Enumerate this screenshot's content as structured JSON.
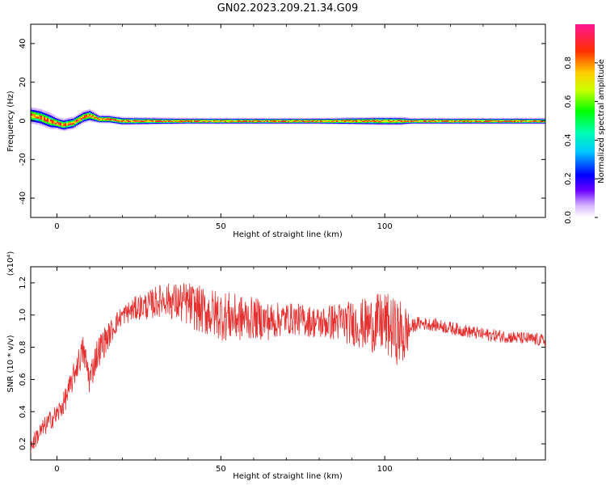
{
  "title": "GN02.2023.209.21.34.G09",
  "chart_data": [
    {
      "type": "heatmap",
      "xlabel": "Height of straight line (km)",
      "ylabel": "Frequency (Hz)",
      "xlim": [
        -8,
        149
      ],
      "ylim": [
        -50,
        50
      ],
      "xticks": [
        0,
        50,
        100
      ],
      "yticks": [
        -40,
        -20,
        0,
        20,
        40
      ],
      "yticklabels": [
        "-40",
        "-20",
        "0",
        "20",
        "40"
      ],
      "colorbar": {
        "label": "Normalized spectral amplitude",
        "range": [
          0,
          1
        ],
        "ticks": [
          0.0,
          0.2,
          0.4,
          0.6,
          0.8
        ],
        "ticklabels": [
          "0.0",
          "0.2",
          "0.4",
          "0.6",
          "0.8"
        ],
        "colormap": [
          "#ffffff",
          "#6a00ff",
          "#0000ff",
          "#00ffff",
          "#00ff00",
          "#ffff00",
          "#ff0000",
          "#ff1493"
        ]
      },
      "ridge": {
        "x": [
          -8,
          -5,
          -2,
          0,
          2,
          5,
          8,
          10,
          13,
          16,
          20,
          40,
          60,
          80,
          98,
          105,
          108,
          120,
          149
        ],
        "peak_frequency": [
          3,
          2,
          0,
          -1,
          -2,
          -1,
          2,
          3,
          1,
          1,
          0,
          0,
          0,
          0,
          0,
          0,
          0,
          0,
          0
        ],
        "halfwidth_hz": [
          4,
          4,
          4,
          3,
          3,
          3,
          3,
          3,
          2,
          2,
          2,
          1.5,
          1.5,
          1.5,
          2,
          2,
          1.5,
          1.5,
          1.5
        ]
      }
    },
    {
      "type": "line",
      "xlabel": "Height of straight line (km)",
      "ylabel": "SNR (10 * v/v)",
      "yscale_label": "(x10⁴)",
      "xlim": [
        -8,
        149
      ],
      "ylim": [
        0.1,
        1.3
      ],
      "xticks": [
        0,
        50,
        100
      ],
      "yticks": [
        0.2,
        0.4,
        0.6,
        0.8,
        1.0,
        1.2
      ],
      "yticklabels": [
        "0.2",
        "0.4",
        "0.6",
        "0.8",
        "1.0",
        "1.2"
      ],
      "color": "#e53030",
      "series": [
        {
          "x": [
            -8,
            -6,
            -4,
            -2,
            0,
            2,
            4,
            6,
            8,
            10,
            12,
            14,
            16,
            18,
            20,
            22,
            25,
            28,
            30,
            33,
            36,
            40,
            45,
            50,
            55,
            60,
            65,
            70,
            75,
            80,
            85,
            90,
            95,
            100,
            103,
            106,
            108,
            110,
            115,
            120,
            125,
            130,
            135,
            140,
            145,
            149
          ],
          "y": [
            0.18,
            0.25,
            0.3,
            0.35,
            0.38,
            0.45,
            0.55,
            0.68,
            0.78,
            0.6,
            0.75,
            0.82,
            0.88,
            0.95,
            1.0,
            1.02,
            1.05,
            1.06,
            1.08,
            1.1,
            1.08,
            1.07,
            1.02,
            1.0,
            0.98,
            0.98,
            0.96,
            0.98,
            0.97,
            0.95,
            0.96,
            0.95,
            0.94,
            0.95,
            0.9,
            0.88,
            0.92,
            0.95,
            0.94,
            0.92,
            0.9,
            0.88,
            0.87,
            0.86,
            0.85,
            0.84
          ],
          "noise_amplitude": [
            0.05,
            0.06,
            0.06,
            0.06,
            0.07,
            0.07,
            0.08,
            0.08,
            0.1,
            0.1,
            0.1,
            0.1,
            0.08,
            0.07,
            0.06,
            0.07,
            0.08,
            0.09,
            0.1,
            0.1,
            0.12,
            0.14,
            0.15,
            0.16,
            0.15,
            0.13,
            0.12,
            0.1,
            0.1,
            0.1,
            0.12,
            0.14,
            0.17,
            0.2,
            0.2,
            0.22,
            0.05,
            0.04,
            0.04,
            0.04,
            0.04,
            0.04,
            0.04,
            0.04,
            0.04,
            0.04
          ]
        }
      ]
    }
  ]
}
